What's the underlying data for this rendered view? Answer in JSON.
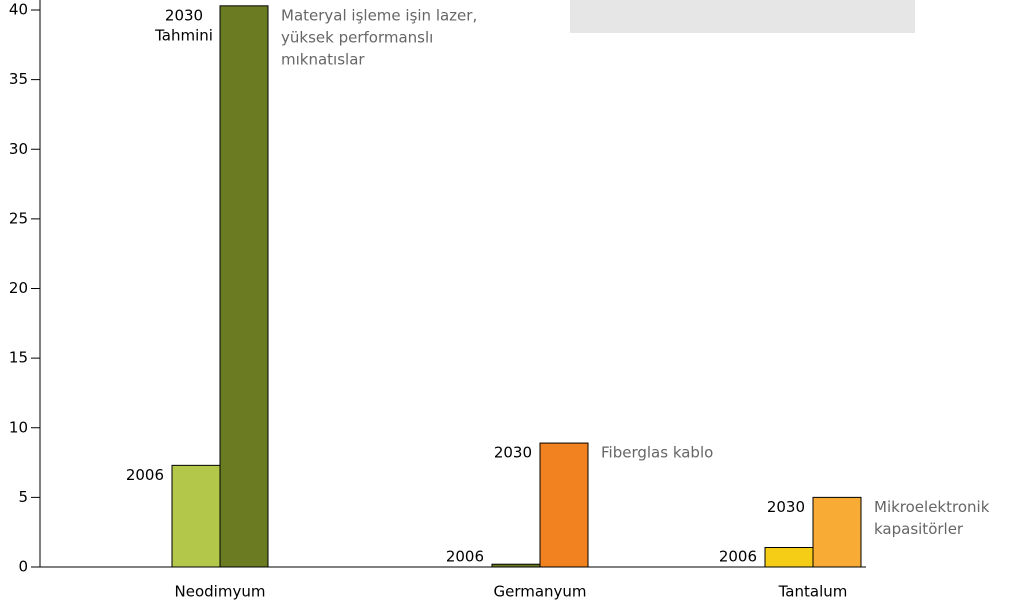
{
  "chart_data": {
    "type": "bar",
    "categories": [
      "Neodimyum",
      "Germanyum",
      "Tantalum"
    ],
    "series": [
      {
        "colors": [
          "#b3c84a",
          "#6a7b22",
          "#f5cc16"
        ],
        "values": [
          7.3,
          0.2,
          1.4
        ],
        "labels": [
          [
            "2006"
          ],
          [
            "2006"
          ],
          [
            "2006"
          ]
        ]
      },
      {
        "colors": [
          "#6a7b22",
          "#f28220",
          "#f9ac35"
        ],
        "values": [
          40.3,
          8.9,
          5.0
        ],
        "labels": [
          [
            "2030",
            "Tahmini"
          ],
          [
            "2030"
          ],
          [
            "2030"
          ]
        ]
      }
    ],
    "annotations": [
      [
        "Materyal işleme işin lazer,",
        "yüksek performanslı",
        "mıknatıslar"
      ],
      [
        "Fiberglas kablo"
      ],
      [
        "Mikroelektronik",
        "kapasitörler"
      ]
    ],
    "ylim": [
      0,
      40
    ],
    "yticks": [
      0,
      5,
      10,
      15,
      20,
      25,
      30,
      35,
      40
    ]
  }
}
